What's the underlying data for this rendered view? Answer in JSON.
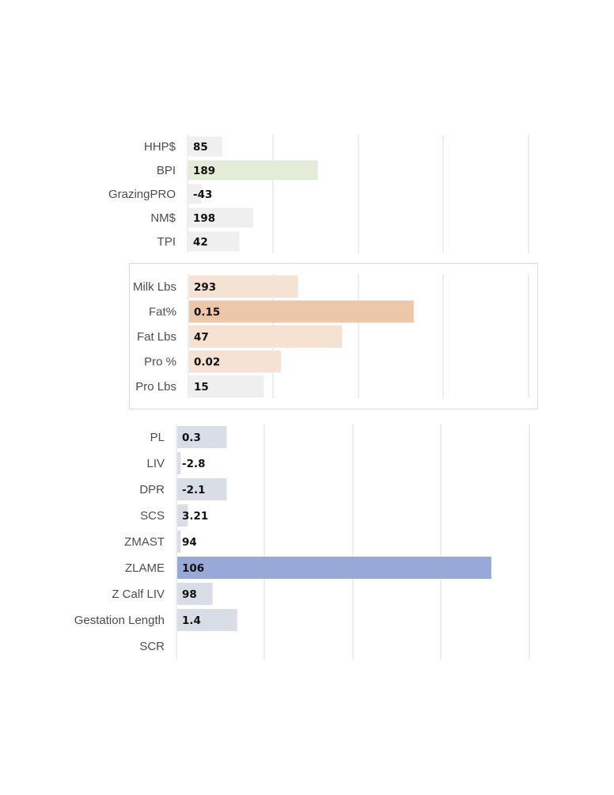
{
  "colors": {
    "neutral": "#efefef",
    "green": "#e2ecd6",
    "peach_light": "#f5e2d3",
    "peach_dark": "#ecc7aa",
    "blue_light": "#d8dde6",
    "blue_dark": "#97a9d6",
    "grid": "#dcdcdc",
    "label": "#4d4d4d",
    "value": "#111111"
  },
  "chart_data": [
    {
      "type": "bar",
      "orientation": "horizontal",
      "grid": true,
      "categories": [
        "HHP$",
        "BPI",
        "GrazingPRO",
        "NM$",
        "TPI"
      ],
      "values": [
        85,
        189,
        -43,
        198,
        42
      ],
      "value_labels": [
        "85",
        "189",
        "-43",
        "198",
        "42"
      ],
      "bar_lengths_relative": [
        0.1,
        0.38,
        0.04,
        0.19,
        0.15
      ],
      "bar_colors": [
        "neutral",
        "green",
        "neutral",
        "neutral",
        "neutral"
      ]
    },
    {
      "type": "bar",
      "orientation": "horizontal",
      "grid": true,
      "boxed": true,
      "categories": [
        "Milk Lbs",
        "Fat%",
        "Fat Lbs",
        "Pro %",
        "Pro Lbs"
      ],
      "values": [
        293,
        0.15,
        47,
        0.02,
        15
      ],
      "value_labels": [
        "293",
        "0.15",
        "47",
        "0.02",
        "15"
      ],
      "bar_lengths_relative": [
        0.32,
        0.66,
        0.45,
        0.27,
        0.22
      ],
      "bar_colors": [
        "peach_light",
        "peach_dark",
        "peach_light",
        "peach_light",
        "neutral"
      ]
    },
    {
      "type": "bar",
      "orientation": "horizontal",
      "grid": true,
      "categories": [
        "PL",
        "LIV",
        "DPR",
        "SCS",
        "ZMAST",
        "ZLAME",
        "Z Calf LIV",
        "Gestation Length",
        "SCR"
      ],
      "values": [
        0.3,
        -2.8,
        -2.1,
        3.21,
        94,
        106,
        98,
        1.4,
        null
      ],
      "value_labels": [
        "0.3",
        "-2.8",
        "-2.1",
        "3.21",
        "94",
        "106",
        "98",
        "1.4",
        ""
      ],
      "bar_lengths_relative": [
        0.14,
        0.01,
        0.14,
        0.03,
        0.01,
        0.89,
        0.1,
        0.17,
        0
      ],
      "bar_colors": [
        "blue_light",
        "blue_light",
        "blue_light",
        "blue_light",
        "blue_light",
        "blue_dark",
        "blue_light",
        "blue_light",
        "blue_light"
      ]
    }
  ]
}
